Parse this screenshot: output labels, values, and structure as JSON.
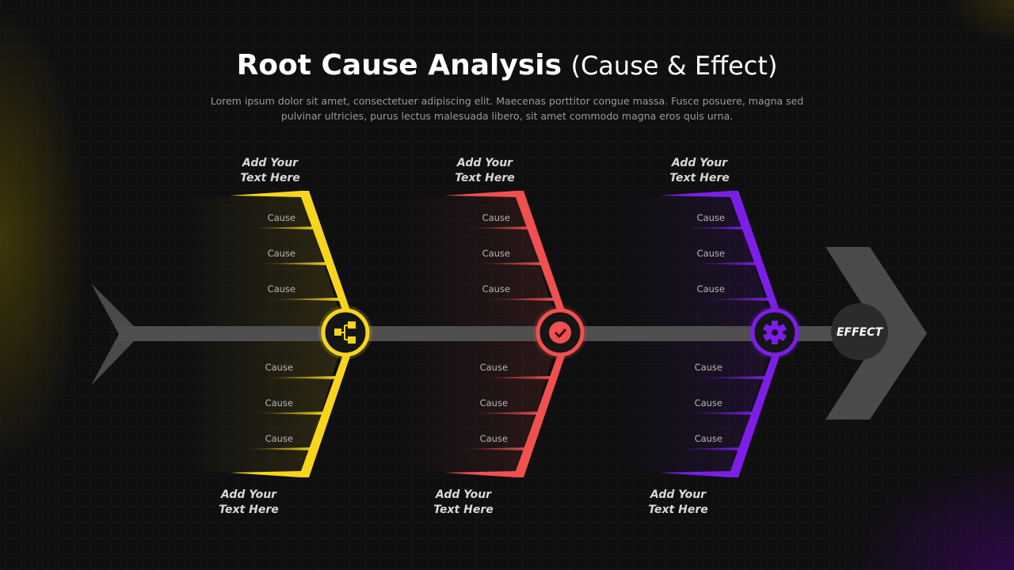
{
  "header": {
    "title_bold": "Root Cause Analysis",
    "title_light": "(Cause & Effect)",
    "subtitle": "Lorem ipsum dolor sit amet, consectetuer adipiscing elit. Maecenas porttitor congue massa. Fusce posuere, magna sed pulvinar ultricies, purus lectus malesuada libero, sit amet commodo magna eros quis urna."
  },
  "effect_label": "EFFECT",
  "bones": [
    {
      "color": "#f7d51d",
      "icon": "hierarchy-icon",
      "top_label": [
        "Add Your",
        "Text Here"
      ],
      "bottom_label": [
        "Add Your",
        "Text Here"
      ],
      "top_causes": [
        "Cause",
        "Cause",
        "Cause"
      ],
      "bottom_causes": [
        "Cause",
        "Cause",
        "Cause"
      ]
    },
    {
      "color": "#f0504e",
      "icon": "check-icon",
      "top_label": [
        "Add Your",
        "Text Here"
      ],
      "bottom_label": [
        "Add Your",
        "Text Here"
      ],
      "top_causes": [
        "Cause",
        "Cause",
        "Cause"
      ],
      "bottom_causes": [
        "Cause",
        "Cause",
        "Cause"
      ]
    },
    {
      "color": "#7d1ee8",
      "icon": "gear-icon",
      "top_label": [
        "Add Your",
        "Text Here"
      ],
      "bottom_label": [
        "Add Your",
        "Text Here"
      ],
      "top_causes": [
        "Cause",
        "Cause",
        "Cause"
      ],
      "bottom_causes": [
        "Cause",
        "Cause",
        "Cause"
      ]
    }
  ]
}
